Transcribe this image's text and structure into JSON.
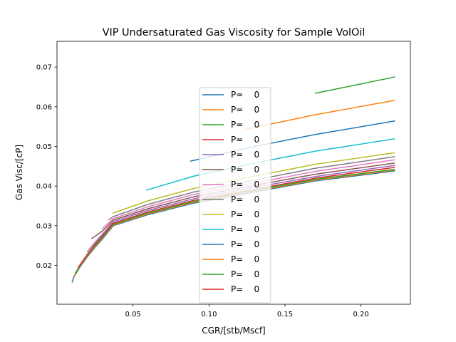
{
  "chart_data": {
    "type": "line",
    "title": "VIP  Undersaturated Gas Viscosity for Sample VolOil",
    "xlabel": "CGR/[stb/Mscf]",
    "ylabel": "Gas Visc/[cP]",
    "xlim": [
      0.0,
      0.2325
    ],
    "ylim": [
      0.0102,
      0.0765
    ],
    "xticks": [
      0.05,
      0.1,
      0.15,
      0.2
    ],
    "xtick_labels": [
      "0.05",
      "0.10",
      "0.15",
      "0.20"
    ],
    "yticks": [
      0.02,
      0.03,
      0.04,
      0.05,
      0.06,
      0.07
    ],
    "ytick_labels": [
      "0.02",
      "0.03",
      "0.04",
      "0.05",
      "0.06",
      "0.07"
    ],
    "grid": false,
    "legend_position": "center",
    "series": [
      {
        "name": "P=    0",
        "color": "#1f77b4",
        "x": [
          0.01,
          0.011,
          0.015,
          0.02,
          0.025,
          0.03,
          0.037,
          0.06,
          0.09,
          0.13,
          0.17,
          0.222
        ],
        "y": [
          0.0158,
          0.017,
          0.0195,
          0.0222,
          0.0245,
          0.0267,
          0.03,
          0.0328,
          0.0357,
          0.0385,
          0.0413,
          0.0438
        ]
      },
      {
        "name": "P=    0",
        "color": "#ff7f0e",
        "x": [
          0.011,
          0.015,
          0.02,
          0.025,
          0.03,
          0.037,
          0.06,
          0.09,
          0.13,
          0.17,
          0.222
        ],
        "y": [
          0.0172,
          0.0197,
          0.0224,
          0.0247,
          0.027,
          0.0302,
          0.033,
          0.0359,
          0.0387,
          0.0415,
          0.044
        ]
      },
      {
        "name": "P=    0",
        "color": "#2ca02c",
        "x": [
          0.012,
          0.015,
          0.02,
          0.025,
          0.03,
          0.037,
          0.06,
          0.09,
          0.13,
          0.17,
          0.222
        ],
        "y": [
          0.018,
          0.0199,
          0.0226,
          0.025,
          0.0272,
          0.0304,
          0.0332,
          0.0361,
          0.0389,
          0.0417,
          0.0442
        ]
      },
      {
        "name": "P=    0",
        "color": "#d62728",
        "x": [
          0.014,
          0.02,
          0.025,
          0.03,
          0.037,
          0.06,
          0.09,
          0.13,
          0.17,
          0.222
        ],
        "y": [
          0.0195,
          0.0228,
          0.0253,
          0.0275,
          0.0306,
          0.0335,
          0.0364,
          0.0392,
          0.042,
          0.0447
        ]
      },
      {
        "name": "P=    0",
        "color": "#9467bd",
        "x": [
          0.02,
          0.025,
          0.03,
          0.037,
          0.06,
          0.09,
          0.13,
          0.17,
          0.222
        ],
        "y": [
          0.0235,
          0.0258,
          0.0279,
          0.031,
          0.0339,
          0.0368,
          0.0397,
          0.0424,
          0.0452
        ]
      },
      {
        "name": "P=    0",
        "color": "#8c564b",
        "x": [
          0.023,
          0.03,
          0.037,
          0.06,
          0.09,
          0.13,
          0.17,
          0.222
        ],
        "y": [
          0.0268,
          0.0287,
          0.0314,
          0.0343,
          0.0373,
          0.0402,
          0.043,
          0.0458
        ]
      },
      {
        "name": "P=    0",
        "color": "#e377c2",
        "x": [
          0.03,
          0.037,
          0.06,
          0.09,
          0.13,
          0.17,
          0.222
        ],
        "y": [
          0.0293,
          0.0318,
          0.0348,
          0.0379,
          0.0408,
          0.0437,
          0.0466
        ]
      },
      {
        "name": "P=    0",
        "color": "#7f7f7f",
        "x": [
          0.034,
          0.037,
          0.06,
          0.09,
          0.13,
          0.17,
          0.222
        ],
        "y": [
          0.0315,
          0.0323,
          0.0354,
          0.0385,
          0.0415,
          0.0445,
          0.0474
        ]
      },
      {
        "name": "P=    0",
        "color": "#bcbd22",
        "x": [
          0.037,
          0.06,
          0.09,
          0.13,
          0.17,
          0.222
        ],
        "y": [
          0.0332,
          0.0363,
          0.0394,
          0.0425,
          0.0455,
          0.0484
        ]
      },
      {
        "name": "P=    0",
        "color": "#17becf",
        "x": [
          0.059,
          0.09,
          0.13,
          0.17,
          0.222
        ],
        "y": [
          0.039,
          0.0425,
          0.0458,
          0.0488,
          0.0519
        ]
      },
      {
        "name": "P=    0",
        "color": "#1f77b4",
        "x": [
          0.088,
          0.13,
          0.17,
          0.222
        ],
        "y": [
          0.0463,
          0.05,
          0.053,
          0.0564
        ]
      },
      {
        "name": "P=    0",
        "color": "#ff7f0e",
        "x": [
          0.124,
          0.17,
          0.222
        ],
        "y": [
          0.0543,
          0.058,
          0.0616
        ]
      },
      {
        "name": "P=    0",
        "color": "#2ca02c",
        "x": [
          0.17,
          0.222
        ],
        "y": [
          0.0634,
          0.0675
        ]
      },
      {
        "name": "P=    0",
        "color": "#d62728",
        "x": [],
        "y": []
      }
    ]
  }
}
